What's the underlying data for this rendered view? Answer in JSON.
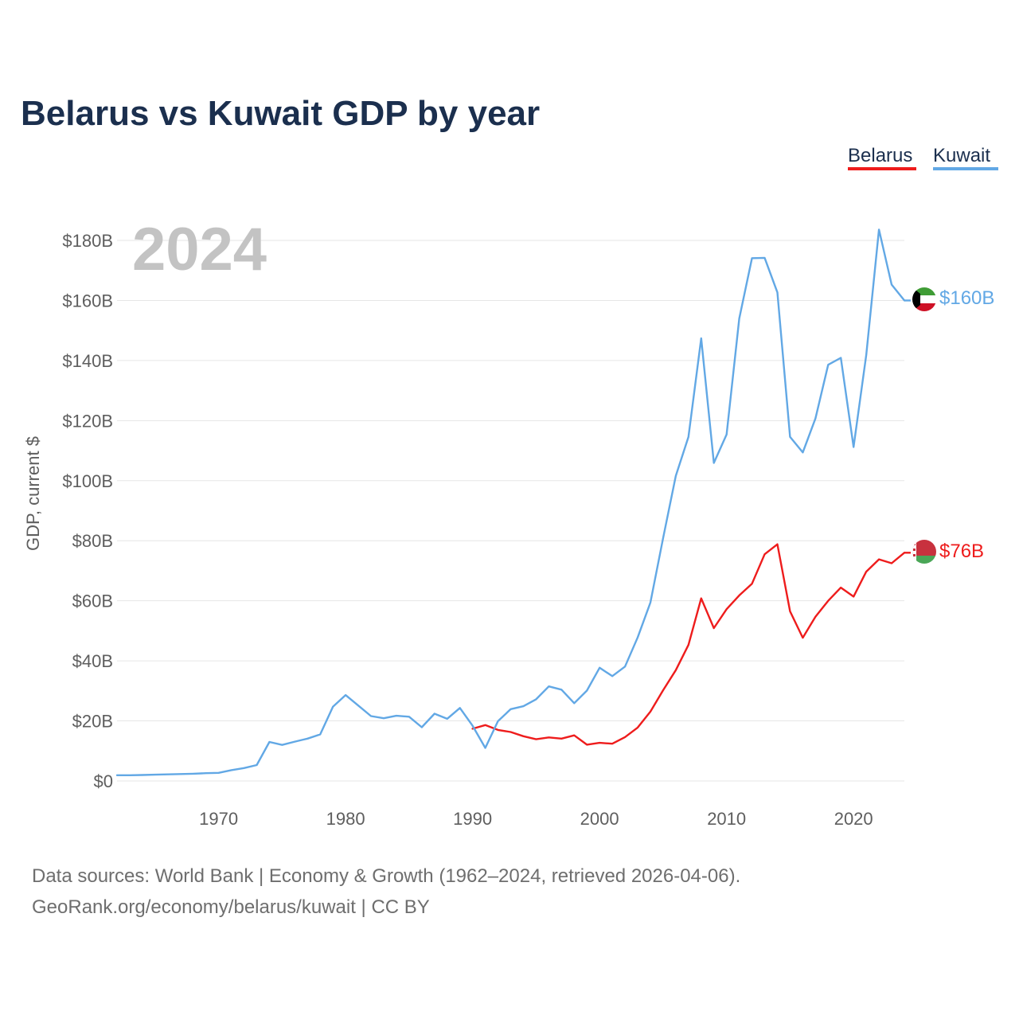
{
  "chart_data": {
    "type": "line",
    "title": "Belarus vs Kuwait GDP by year",
    "ylabel": "GDP, current $",
    "xlabel": "",
    "year_label": "2024",
    "xlim": [
      1962,
      2024
    ],
    "ylim": [
      0,
      180
    ],
    "y_ticks": [
      0,
      20,
      40,
      60,
      80,
      100,
      120,
      140,
      160,
      180
    ],
    "y_tick_labels": [
      "$0",
      "$20B",
      "$40B",
      "$60B",
      "$80B",
      "$100B",
      "$120B",
      "$140B",
      "$160B",
      "$180B"
    ],
    "x_ticks": [
      1970,
      1980,
      1990,
      2000,
      2010,
      2020
    ],
    "x_tick_labels": [
      "1970",
      "1980",
      "1990",
      "2000",
      "2010",
      "2020"
    ],
    "legend": [
      "Belarus",
      "Kuwait"
    ],
    "series": [
      {
        "name": "Belarus",
        "color": "#ee1c1c",
        "end_label": "$76B",
        "flag": "belarus-flag",
        "x": [
          1990,
          1991,
          1992,
          1993,
          1994,
          1995,
          1996,
          1997,
          1998,
          1999,
          2000,
          2001,
          2002,
          2003,
          2004,
          2005,
          2006,
          2007,
          2008,
          2009,
          2010,
          2011,
          2012,
          2013,
          2014,
          2015,
          2016,
          2017,
          2018,
          2019,
          2020,
          2021,
          2022,
          2023,
          2024
        ],
        "values": [
          17.4,
          18.6,
          17.0,
          16.3,
          14.9,
          13.9,
          14.5,
          14.1,
          15.2,
          12.1,
          12.7,
          12.4,
          14.6,
          17.8,
          23.1,
          30.2,
          36.9,
          45.3,
          60.8,
          50.9,
          57.2,
          61.8,
          65.7,
          75.5,
          78.8,
          56.5,
          47.7,
          54.7,
          60.0,
          64.4,
          61.4,
          69.7,
          73.8,
          72.5,
          76.0
        ]
      },
      {
        "name": "Kuwait",
        "color": "#62a8e5",
        "end_label": "$160B",
        "flag": "kuwait-flag",
        "x": [
          1962,
          1963,
          1964,
          1965,
          1966,
          1967,
          1968,
          1969,
          1970,
          1971,
          1972,
          1973,
          1974,
          1975,
          1976,
          1977,
          1978,
          1979,
          1980,
          1981,
          1982,
          1983,
          1984,
          1985,
          1986,
          1987,
          1988,
          1989,
          1990,
          1991,
          1992,
          1993,
          1994,
          1995,
          1996,
          1997,
          1998,
          1999,
          2000,
          2001,
          2002,
          2003,
          2004,
          2005,
          2006,
          2007,
          2008,
          2009,
          2010,
          2011,
          2012,
          2013,
          2014,
          2015,
          2016,
          2017,
          2018,
          2019,
          2020,
          2021,
          2022,
          2023,
          2024
        ],
        "values": [
          1.9,
          1.9,
          2.0,
          2.1,
          2.2,
          2.3,
          2.4,
          2.6,
          2.7,
          3.6,
          4.3,
          5.3,
          13.0,
          12.0,
          13.1,
          14.1,
          15.5,
          24.7,
          28.6,
          25.1,
          21.6,
          20.9,
          21.7,
          21.4,
          17.9,
          22.4,
          20.7,
          24.3,
          18.4,
          11.0,
          19.9,
          23.9,
          24.9,
          27.2,
          31.5,
          30.4,
          25.9,
          30.1,
          37.7,
          34.9,
          38.1,
          47.8,
          59.4,
          80.8,
          101.6,
          114.6,
          147.4,
          105.9,
          115.4,
          154.0,
          174.1,
          174.2,
          162.7,
          114.6,
          109.4,
          120.7,
          138.6,
          140.9,
          111.2,
          141.8,
          183.6,
          165.3,
          160.0
        ]
      }
    ]
  },
  "source": {
    "line1": "Data sources: World Bank | Economy & Growth (1962–2024, retrieved 2026-04-06).",
    "line2": "GeoRank.org/economy/belarus/kuwait | CC BY"
  }
}
